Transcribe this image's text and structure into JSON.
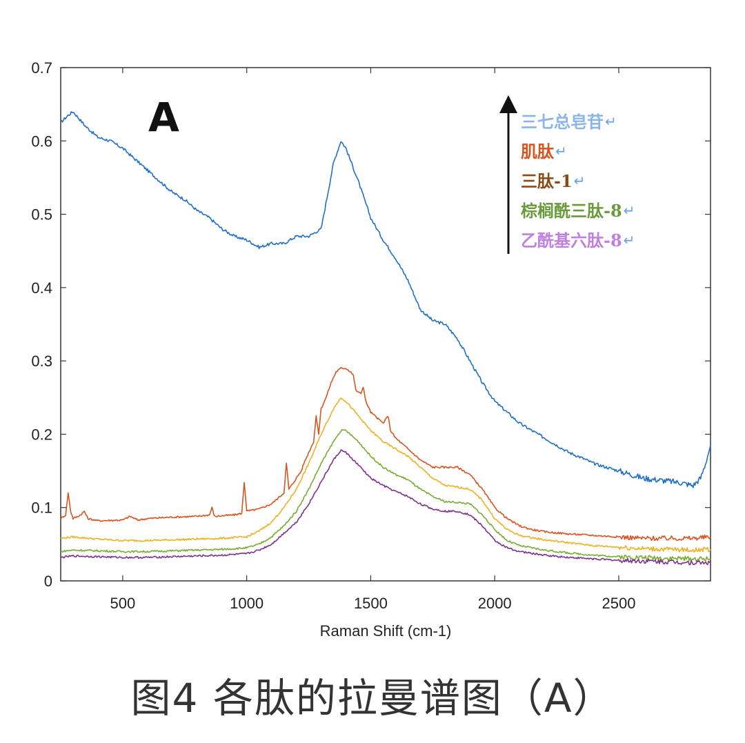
{
  "caption": "图4 各肽的拉曼谱图（A）",
  "chart_data": {
    "type": "line",
    "panel_label": "A",
    "title": "",
    "xlabel": "Raman Shift (cm-1)",
    "ylabel": "",
    "xlim": [
      250,
      2870
    ],
    "ylim": [
      0,
      0.7
    ],
    "xticks": [
      500,
      1000,
      1500,
      2000,
      2500
    ],
    "yticks": [
      0,
      0.1,
      0.2,
      0.3,
      0.4,
      0.5,
      0.6,
      0.7
    ],
    "ytick_labels": [
      "0",
      "0.1",
      "0.2",
      "0.3",
      "0.4",
      "0.5",
      "0.6",
      "0.7"
    ],
    "grid": false,
    "legend_placement": "top-right, top-to-bottom with upward arrow",
    "legend_entry_marker": "↵",
    "series": [
      {
        "name": "三七总皂苷",
        "color": "#1f6fc7",
        "legend_color": "#8ab4ec",
        "x": [
          250,
          280,
          300,
          350,
          400,
          450,
          500,
          550,
          600,
          650,
          700,
          750,
          800,
          850,
          900,
          950,
          1000,
          1050,
          1100,
          1150,
          1200,
          1250,
          1300,
          1350,
          1380,
          1400,
          1450,
          1500,
          1550,
          1600,
          1650,
          1700,
          1750,
          1800,
          1850,
          1900,
          1950,
          2000,
          2050,
          2100,
          2150,
          2200,
          2250,
          2300,
          2350,
          2400,
          2450,
          2500,
          2550,
          2600,
          2650,
          2700,
          2750,
          2800,
          2830,
          2850,
          2870
        ],
        "y": [
          0.625,
          0.635,
          0.64,
          0.62,
          0.605,
          0.6,
          0.59,
          0.575,
          0.56,
          0.545,
          0.53,
          0.52,
          0.505,
          0.495,
          0.48,
          0.47,
          0.465,
          0.455,
          0.46,
          0.46,
          0.47,
          0.47,
          0.48,
          0.57,
          0.6,
          0.59,
          0.545,
          0.495,
          0.465,
          0.44,
          0.41,
          0.37,
          0.355,
          0.35,
          0.33,
          0.3,
          0.27,
          0.245,
          0.23,
          0.215,
          0.205,
          0.195,
          0.185,
          0.175,
          0.168,
          0.16,
          0.155,
          0.15,
          0.145,
          0.14,
          0.138,
          0.136,
          0.134,
          0.13,
          0.14,
          0.16,
          0.185
        ]
      },
      {
        "name": "肌肽",
        "color": "#d9531e",
        "legend_color": "#d9531e",
        "x": [
          250,
          270,
          280,
          290,
          300,
          330,
          345,
          360,
          400,
          500,
          530,
          560,
          600,
          700,
          800,
          850,
          860,
          870,
          950,
          980,
          990,
          1000,
          1050,
          1100,
          1150,
          1160,
          1170,
          1200,
          1220,
          1230,
          1250,
          1270,
          1280,
          1290,
          1300,
          1320,
          1340,
          1360,
          1380,
          1400,
          1420,
          1430,
          1440,
          1460,
          1470,
          1480,
          1500,
          1550,
          1570,
          1580,
          1600,
          1650,
          1700,
          1750,
          1800,
          1850,
          1900,
          1950,
          2000,
          2050,
          2100,
          2150,
          2200,
          2300,
          2400,
          2500,
          2600,
          2700,
          2800,
          2870
        ],
        "y": [
          0.085,
          0.09,
          0.12,
          0.095,
          0.085,
          0.09,
          0.095,
          0.085,
          0.082,
          0.083,
          0.088,
          0.083,
          0.085,
          0.087,
          0.088,
          0.09,
          0.1,
          0.088,
          0.09,
          0.092,
          0.135,
          0.095,
          0.098,
          0.105,
          0.12,
          0.16,
          0.125,
          0.14,
          0.15,
          0.16,
          0.175,
          0.19,
          0.225,
          0.2,
          0.235,
          0.25,
          0.27,
          0.285,
          0.29,
          0.29,
          0.285,
          0.28,
          0.26,
          0.255,
          0.265,
          0.245,
          0.23,
          0.215,
          0.225,
          0.205,
          0.195,
          0.18,
          0.165,
          0.155,
          0.155,
          0.155,
          0.145,
          0.125,
          0.1,
          0.085,
          0.075,
          0.07,
          0.067,
          0.064,
          0.062,
          0.06,
          0.058,
          0.058,
          0.058,
          0.06
        ]
      },
      {
        "name": "三肽-1",
        "color": "#edb120",
        "legend_color": "#8b4a14",
        "x": [
          250,
          300,
          400,
          500,
          600,
          700,
          800,
          900,
          1000,
          1050,
          1100,
          1150,
          1200,
          1250,
          1300,
          1350,
          1380,
          1400,
          1450,
          1500,
          1550,
          1600,
          1650,
          1700,
          1750,
          1800,
          1850,
          1900,
          1950,
          2000,
          2050,
          2100,
          2200,
          2300,
          2400,
          2500,
          2600,
          2700,
          2800,
          2870
        ],
        "y": [
          0.058,
          0.06,
          0.057,
          0.055,
          0.055,
          0.056,
          0.057,
          0.058,
          0.06,
          0.068,
          0.08,
          0.1,
          0.125,
          0.16,
          0.2,
          0.235,
          0.25,
          0.245,
          0.225,
          0.205,
          0.19,
          0.18,
          0.17,
          0.155,
          0.14,
          0.13,
          0.128,
          0.125,
          0.11,
          0.085,
          0.07,
          0.062,
          0.056,
          0.052,
          0.048,
          0.046,
          0.044,
          0.043,
          0.042,
          0.043
        ]
      },
      {
        "name": "棕榈酰三肽-8",
        "color": "#77ac30",
        "legend_color": "#6a9a3c",
        "x": [
          250,
          300,
          400,
          500,
          600,
          700,
          800,
          900,
          1000,
          1050,
          1100,
          1150,
          1200,
          1250,
          1300,
          1350,
          1380,
          1400,
          1450,
          1500,
          1550,
          1600,
          1650,
          1700,
          1750,
          1800,
          1850,
          1900,
          1950,
          2000,
          2050,
          2100,
          2200,
          2300,
          2400,
          2500,
          2600,
          2700,
          2800,
          2870
        ],
        "y": [
          0.04,
          0.042,
          0.041,
          0.04,
          0.04,
          0.041,
          0.042,
          0.043,
          0.045,
          0.05,
          0.06,
          0.075,
          0.095,
          0.125,
          0.16,
          0.19,
          0.205,
          0.205,
          0.19,
          0.17,
          0.155,
          0.145,
          0.138,
          0.125,
          0.115,
          0.108,
          0.107,
          0.105,
          0.09,
          0.07,
          0.055,
          0.048,
          0.042,
          0.038,
          0.035,
          0.033,
          0.032,
          0.031,
          0.03,
          0.03
        ]
      },
      {
        "name": "乙酰基六肽-8",
        "color": "#7e2f8e",
        "legend_color": "#c080e0",
        "x": [
          250,
          300,
          400,
          500,
          600,
          700,
          800,
          900,
          1000,
          1050,
          1100,
          1150,
          1200,
          1250,
          1300,
          1350,
          1380,
          1400,
          1450,
          1500,
          1550,
          1600,
          1650,
          1700,
          1750,
          1800,
          1850,
          1900,
          1950,
          2000,
          2050,
          2100,
          2200,
          2300,
          2400,
          2500,
          2600,
          2700,
          2800,
          2870
        ],
        "y": [
          0.032,
          0.034,
          0.033,
          0.032,
          0.032,
          0.033,
          0.034,
          0.035,
          0.037,
          0.042,
          0.05,
          0.065,
          0.08,
          0.105,
          0.135,
          0.165,
          0.178,
          0.175,
          0.158,
          0.14,
          0.13,
          0.122,
          0.115,
          0.105,
          0.098,
          0.095,
          0.095,
          0.09,
          0.075,
          0.055,
          0.045,
          0.04,
          0.035,
          0.032,
          0.03,
          0.028,
          0.027,
          0.026,
          0.025,
          0.025
        ]
      }
    ]
  }
}
